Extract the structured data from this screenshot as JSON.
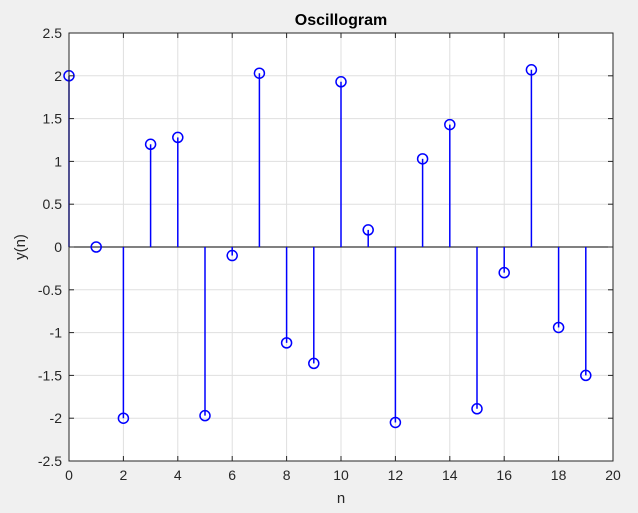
{
  "chart_data": {
    "type": "stem",
    "title": "Oscillogram",
    "xlabel": "n",
    "ylabel": "y(n)",
    "xlim": [
      0,
      20
    ],
    "ylim": [
      -2.5,
      2.5
    ],
    "xticks": [
      0,
      2,
      4,
      6,
      8,
      10,
      12,
      14,
      16,
      18,
      20
    ],
    "yticks": [
      2.5,
      2,
      1.5,
      1,
      0.5,
      0,
      -0.5,
      -1,
      -1.5,
      -2,
      -2.5
    ],
    "grid": true,
    "x": [
      0,
      1,
      2,
      3,
      4,
      5,
      6,
      7,
      8,
      9,
      10,
      11,
      12,
      13,
      14,
      15,
      16,
      17,
      18,
      19
    ],
    "y": [
      2.0,
      0.0,
      -2.0,
      1.2,
      1.28,
      -1.97,
      -0.1,
      2.03,
      -1.12,
      -1.36,
      1.93,
      0.2,
      -2.05,
      1.03,
      1.43,
      -1.89,
      -0.3,
      2.07,
      -0.94,
      -1.5
    ]
  },
  "colors": {
    "stem": "#0000ff",
    "baseline": "#000000",
    "grid": "#dfdfdf",
    "axes_bg": "#ffffff",
    "axes_edge": "#262626"
  }
}
